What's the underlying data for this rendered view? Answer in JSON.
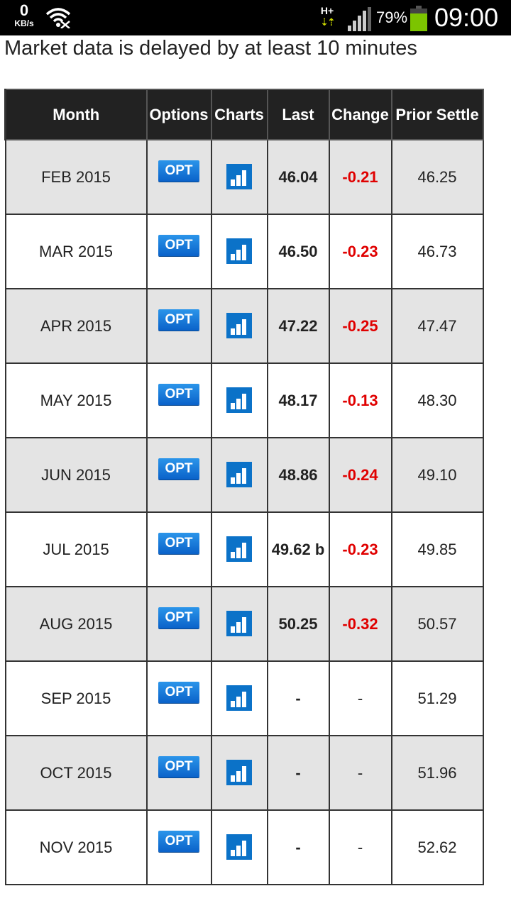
{
  "status_bar": {
    "speed_value": "0",
    "speed_unit": "KB/s",
    "network_type": "H+",
    "network_arrows": "⇣⇡",
    "battery_percent": "79%",
    "battery_level": 0.79,
    "time": "09:00"
  },
  "notice": "Market data is delayed by at least 10 minutes",
  "table": {
    "headers": [
      "Month",
      "Options",
      "Charts",
      "Last",
      "Change",
      "Prior Settle"
    ],
    "rows": [
      {
        "month": "FEB 2015",
        "opt": "OPT",
        "last": "46.04",
        "change": "-0.21",
        "prior": "46.25"
      },
      {
        "month": "MAR 2015",
        "opt": "OPT",
        "last": "46.50",
        "change": "-0.23",
        "prior": "46.73"
      },
      {
        "month": "APR 2015",
        "opt": "OPT",
        "last": "47.22",
        "change": "-0.25",
        "prior": "47.47"
      },
      {
        "month": "MAY 2015",
        "opt": "OPT",
        "last": "48.17",
        "change": "-0.13",
        "prior": "48.30"
      },
      {
        "month": "JUN 2015",
        "opt": "OPT",
        "last": "48.86",
        "change": "-0.24",
        "prior": "49.10"
      },
      {
        "month": "JUL 2015",
        "opt": "OPT",
        "last": "49.62 b",
        "change": "-0.23",
        "prior": "49.85"
      },
      {
        "month": "AUG 2015",
        "opt": "OPT",
        "last": "50.25",
        "change": "-0.32",
        "prior": "50.57"
      },
      {
        "month": "SEP 2015",
        "opt": "OPT",
        "last": "-",
        "change": "-",
        "prior": "51.29"
      },
      {
        "month": "OCT 2015",
        "opt": "OPT",
        "last": "-",
        "change": "-",
        "prior": "51.96"
      },
      {
        "month": "NOV 2015",
        "opt": "OPT",
        "last": "-",
        "change": "-",
        "prior": "52.62"
      }
    ]
  },
  "colors": {
    "negative_change": "#e00000",
    "opt_badge": "#1a7fdb",
    "header_bg": "#222222",
    "odd_row_bg": "#e4e4e4"
  },
  "icons": {
    "wifi": "wifi-icon",
    "signal": "signal-strength-icon",
    "battery": "battery-icon",
    "chart": "bar-chart-icon"
  }
}
